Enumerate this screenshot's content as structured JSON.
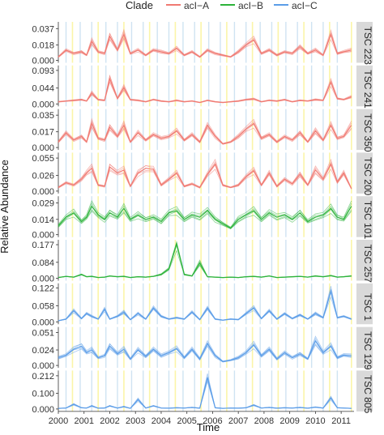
{
  "chart_data": {
    "type": "line",
    "xlabel": "Time",
    "ylabel": "Relative Abundance",
    "legend": {
      "title": "Clade",
      "placement": "top",
      "entries": [
        {
          "name": "acI−A",
          "color": "#f07a72"
        },
        {
          "name": "acI−B",
          "color": "#2cb33a"
        },
        {
          "name": "acI−C",
          "color": "#5b9de8"
        }
      ]
    },
    "x_ticks": [
      "2000",
      "2001",
      "2002",
      "2003",
      "2004",
      "2005",
      "2006",
      "2007",
      "2008",
      "2009",
      "2010",
      "2011"
    ],
    "xlim": [
      2000.0,
      2011.5
    ],
    "vertical_lines": {
      "yellow_color": "#fbf5a8",
      "blue_color": "#cfe3f2",
      "yellow": [
        2000.55,
        2001.55,
        2002.55,
        2003.55,
        2004.55,
        2005.55,
        2006.55,
        2007.55,
        2008.55,
        2009.55,
        2010.55,
        2011.4
      ],
      "blue": [
        2000.3,
        2000.85,
        2001.3,
        2001.85,
        2002.3,
        2002.85,
        2003.3,
        2003.85,
        2004.3,
        2004.85,
        2005.3,
        2005.85,
        2006.3,
        2006.85,
        2007.3,
        2007.85,
        2008.3,
        2008.85,
        2009.3,
        2009.85,
        2010.3,
        2010.85
      ]
    },
    "panels": [
      {
        "strip": "TSC 223",
        "clade": "acI−A",
        "ticks": [
          "0.000",
          "0.018",
          "0.037"
        ],
        "ymax": 0.042,
        "x": [
          2000.0,
          2000.3,
          2000.6,
          2000.9,
          2001.1,
          2001.3,
          2001.55,
          2001.8,
          2002.0,
          2002.3,
          2002.55,
          2002.8,
          2003.1,
          2003.4,
          2003.7,
          2004.0,
          2004.3,
          2004.6,
          2004.9,
          2005.2,
          2005.5,
          2005.8,
          2006.1,
          2006.4,
          2006.7,
          2007.0,
          2007.3,
          2007.6,
          2007.9,
          2008.2,
          2008.5,
          2008.8,
          2009.1,
          2009.4,
          2009.7,
          2010.0,
          2010.3,
          2010.6,
          2010.85,
          2011.1,
          2011.4
        ],
        "y": [
          0.004,
          0.012,
          0.008,
          0.01,
          0.006,
          0.022,
          0.01,
          0.008,
          0.028,
          0.012,
          0.03,
          0.008,
          0.012,
          0.006,
          0.012,
          0.01,
          0.008,
          0.014,
          0.006,
          0.01,
          0.004,
          0.012,
          0.008,
          0.006,
          0.004,
          0.01,
          0.018,
          0.024,
          0.008,
          0.012,
          0.006,
          0.01,
          0.008,
          0.016,
          0.008,
          0.012,
          0.006,
          0.03,
          0.008,
          0.01,
          0.012
        ]
      },
      {
        "strip": "TSC 241",
        "clade": "acI−A",
        "ticks": [
          "0.000",
          "0.044",
          "0.093"
        ],
        "ymax": 0.1,
        "x": [
          2000.0,
          2000.3,
          2000.6,
          2000.9,
          2001.1,
          2001.3,
          2001.55,
          2001.8,
          2002.0,
          2002.3,
          2002.55,
          2002.8,
          2003.1,
          2003.4,
          2003.7,
          2004.0,
          2004.3,
          2004.6,
          2004.9,
          2005.2,
          2005.5,
          2005.8,
          2006.1,
          2006.4,
          2006.7,
          2007.0,
          2007.3,
          2007.6,
          2007.9,
          2008.2,
          2008.5,
          2008.8,
          2009.1,
          2009.4,
          2009.7,
          2010.0,
          2010.3,
          2010.6,
          2010.85,
          2011.1,
          2011.4
        ],
        "y": [
          0.006,
          0.008,
          0.01,
          0.012,
          0.008,
          0.03,
          0.012,
          0.01,
          0.07,
          0.015,
          0.045,
          0.012,
          0.01,
          0.006,
          0.012,
          0.008,
          0.006,
          0.01,
          0.006,
          0.008,
          0.004,
          0.01,
          0.006,
          0.004,
          0.006,
          0.008,
          0.012,
          0.014,
          0.006,
          0.01,
          0.008,
          0.012,
          0.006,
          0.01,
          0.008,
          0.012,
          0.01,
          0.06,
          0.015,
          0.012,
          0.02
        ]
      },
      {
        "strip": "TSC 350",
        "clade": "acI−A",
        "ticks": [
          "0.000",
          "0.017",
          "0.035"
        ],
        "ymax": 0.039,
        "x": [
          2000.0,
          2000.3,
          2000.6,
          2000.9,
          2001.1,
          2001.3,
          2001.55,
          2001.8,
          2002.0,
          2002.3,
          2002.55,
          2002.8,
          2003.1,
          2003.4,
          2003.7,
          2004.0,
          2004.3,
          2004.6,
          2004.9,
          2005.2,
          2005.5,
          2005.8,
          2006.1,
          2006.4,
          2006.7,
          2007.0,
          2007.3,
          2007.6,
          2007.9,
          2008.2,
          2008.5,
          2008.8,
          2009.1,
          2009.4,
          2009.7,
          2010.0,
          2010.3,
          2010.6,
          2010.85,
          2011.1,
          2011.4
        ],
        "y": [
          0.006,
          0.016,
          0.008,
          0.012,
          0.006,
          0.026,
          0.01,
          0.008,
          0.022,
          0.012,
          0.024,
          0.006,
          0.016,
          0.008,
          0.014,
          0.01,
          0.012,
          0.018,
          0.008,
          0.014,
          0.006,
          0.024,
          0.012,
          0.004,
          0.006,
          0.012,
          0.02,
          0.026,
          0.01,
          0.014,
          0.006,
          0.012,
          0.008,
          0.016,
          0.006,
          0.018,
          0.008,
          0.024,
          0.01,
          0.012,
          0.024
        ]
      },
      {
        "strip": "TSC 200",
        "clade": "acI−A",
        "ticks": [
          "0.000",
          "0.026",
          "0.055"
        ],
        "ymax": 0.06,
        "x": [
          2000.0,
          2000.3,
          2000.6,
          2000.9,
          2001.1,
          2001.3,
          2001.55,
          2001.8,
          2002.0,
          2002.3,
          2002.55,
          2002.8,
          2003.1,
          2003.4,
          2003.7,
          2004.0,
          2004.3,
          2004.6,
          2004.9,
          2005.2,
          2005.5,
          2005.8,
          2006.1,
          2006.4,
          2006.7,
          2007.0,
          2007.3,
          2007.6,
          2007.9,
          2008.2,
          2008.5,
          2008.8,
          2009.1,
          2009.4,
          2009.7,
          2010.0,
          2010.3,
          2010.6,
          2010.85,
          2011.1,
          2011.4
        ],
        "y": [
          0.006,
          0.014,
          0.01,
          0.02,
          0.03,
          0.038,
          0.01,
          0.008,
          0.04,
          0.03,
          0.035,
          0.008,
          0.03,
          0.038,
          0.036,
          0.01,
          0.02,
          0.03,
          0.008,
          0.012,
          0.006,
          0.028,
          0.045,
          0.01,
          0.006,
          0.01,
          0.024,
          0.034,
          0.01,
          0.03,
          0.008,
          0.02,
          0.012,
          0.028,
          0.01,
          0.035,
          0.02,
          0.045,
          0.015,
          0.03,
          0.004
        ]
      },
      {
        "strip": "TSC 101",
        "clade": "acI−B",
        "ticks": [
          "0.000",
          "0.014",
          "0.029"
        ],
        "ymax": 0.033,
        "x": [
          2000.0,
          2000.3,
          2000.6,
          2000.9,
          2001.1,
          2001.3,
          2001.55,
          2001.8,
          2002.0,
          2002.3,
          2002.55,
          2002.8,
          2003.1,
          2003.4,
          2003.7,
          2004.0,
          2004.3,
          2004.6,
          2004.9,
          2005.2,
          2005.5,
          2005.8,
          2006.1,
          2006.4,
          2006.7,
          2007.0,
          2007.3,
          2007.6,
          2007.9,
          2008.2,
          2008.5,
          2008.8,
          2009.1,
          2009.4,
          2009.7,
          2010.0,
          2010.3,
          2010.6,
          2010.85,
          2011.1,
          2011.4
        ],
        "y": [
          0.008,
          0.016,
          0.02,
          0.012,
          0.016,
          0.026,
          0.018,
          0.014,
          0.02,
          0.016,
          0.024,
          0.014,
          0.018,
          0.014,
          0.016,
          0.012,
          0.02,
          0.022,
          0.014,
          0.018,
          0.016,
          0.022,
          0.014,
          0.01,
          0.006,
          0.014,
          0.018,
          0.022,
          0.014,
          0.02,
          0.016,
          0.018,
          0.014,
          0.02,
          0.012,
          0.016,
          0.018,
          0.024,
          0.016,
          0.014,
          0.026
        ]
      },
      {
        "strip": "TSC 257",
        "clade": "acI−B",
        "ticks": [
          "0.000",
          "0.084",
          "0.177"
        ],
        "ymax": 0.19,
        "x": [
          2000.0,
          2000.3,
          2000.6,
          2000.9,
          2001.1,
          2001.3,
          2001.55,
          2001.8,
          2002.0,
          2002.3,
          2002.55,
          2002.8,
          2003.1,
          2003.4,
          2003.7,
          2004.0,
          2004.3,
          2004.6,
          2004.9,
          2005.2,
          2005.5,
          2005.8,
          2006.1,
          2006.4,
          2006.7,
          2007.0,
          2007.3,
          2007.6,
          2007.9,
          2008.2,
          2008.5,
          2008.8,
          2009.1,
          2009.4,
          2009.7,
          2010.0,
          2010.3,
          2010.6,
          2010.85,
          2011.1,
          2011.4
        ],
        "y": [
          0.004,
          0.01,
          0.006,
          0.02,
          0.008,
          0.01,
          0.004,
          0.006,
          0.012,
          0.008,
          0.01,
          0.004,
          0.008,
          0.006,
          0.01,
          0.02,
          0.05,
          0.18,
          0.02,
          0.012,
          0.08,
          0.008,
          0.006,
          0.004,
          0.006,
          0.004,
          0.008,
          0.01,
          0.006,
          0.012,
          0.004,
          0.006,
          0.008,
          0.01,
          0.006,
          0.012,
          0.008,
          0.014,
          0.006,
          0.008,
          0.012
        ]
      },
      {
        "strip": "TSC 1",
        "clade": "acI−C",
        "ticks": [
          "0.000",
          "0.058",
          "0.122"
        ],
        "ymax": 0.13,
        "x": [
          2000.0,
          2000.3,
          2000.6,
          2000.9,
          2001.1,
          2001.3,
          2001.55,
          2001.8,
          2002.0,
          2002.3,
          2002.55,
          2002.8,
          2003.1,
          2003.4,
          2003.7,
          2004.0,
          2004.3,
          2004.6,
          2004.9,
          2005.2,
          2005.5,
          2005.8,
          2006.1,
          2006.4,
          2006.7,
          2007.0,
          2007.3,
          2007.6,
          2007.9,
          2008.2,
          2008.5,
          2008.8,
          2009.1,
          2009.4,
          2009.7,
          2010.0,
          2010.3,
          2010.6,
          2010.85,
          2011.1,
          2011.4
        ],
        "y": [
          0.004,
          0.01,
          0.04,
          0.012,
          0.03,
          0.02,
          0.01,
          0.045,
          0.01,
          0.02,
          0.035,
          0.008,
          0.03,
          0.01,
          0.05,
          0.02,
          0.01,
          0.015,
          0.01,
          0.035,
          0.008,
          0.05,
          0.01,
          0.006,
          0.01,
          0.008,
          0.03,
          0.05,
          0.012,
          0.04,
          0.01,
          0.03,
          0.012,
          0.025,
          0.01,
          0.03,
          0.015,
          0.11,
          0.015,
          0.02,
          0.01
        ]
      },
      {
        "strip": "TSC 129",
        "clade": "acI−C",
        "ticks": [
          "0.000",
          "0.024",
          "0.051"
        ],
        "ymax": 0.056,
        "x": [
          2000.0,
          2000.3,
          2000.6,
          2000.9,
          2001.1,
          2001.3,
          2001.55,
          2001.8,
          2002.0,
          2002.3,
          2002.55,
          2002.8,
          2003.1,
          2003.4,
          2003.7,
          2004.0,
          2004.3,
          2004.6,
          2004.9,
          2005.2,
          2005.5,
          2005.8,
          2006.1,
          2006.4,
          2006.7,
          2007.0,
          2007.3,
          2007.6,
          2007.9,
          2008.2,
          2008.5,
          2008.8,
          2009.1,
          2009.4,
          2009.7,
          2010.0,
          2010.3,
          2010.6,
          2010.85,
          2011.1,
          2011.4
        ],
        "y": [
          0.012,
          0.016,
          0.025,
          0.03,
          0.02,
          0.024,
          0.012,
          0.015,
          0.03,
          0.018,
          0.025,
          0.01,
          0.024,
          0.014,
          0.025,
          0.015,
          0.02,
          0.026,
          0.012,
          0.025,
          0.01,
          0.034,
          0.015,
          0.006,
          0.008,
          0.012,
          0.02,
          0.032,
          0.015,
          0.025,
          0.01,
          0.02,
          0.012,
          0.018,
          0.01,
          0.038,
          0.02,
          0.03,
          0.012,
          0.016,
          0.015
        ]
      },
      {
        "strip": "TSC 805",
        "clade": "acI−C",
        "ticks": [
          "0.000",
          "0.100",
          "0.212"
        ],
        "ymax": 0.23,
        "x": [
          2000.0,
          2000.3,
          2000.6,
          2000.9,
          2001.1,
          2001.3,
          2001.55,
          2001.8,
          2002.0,
          2002.3,
          2002.55,
          2002.8,
          2003.1,
          2003.4,
          2003.7,
          2004.0,
          2004.3,
          2004.6,
          2004.9,
          2005.2,
          2005.5,
          2005.8,
          2006.1,
          2006.4,
          2006.7,
          2007.0,
          2007.3,
          2007.6,
          2007.9,
          2008.2,
          2008.5,
          2008.8,
          2009.1,
          2009.4,
          2009.7,
          2010.0,
          2010.3,
          2010.6,
          2010.85,
          2011.1,
          2011.4
        ],
        "y": [
          0.004,
          0.006,
          0.03,
          0.008,
          0.006,
          0.02,
          0.005,
          0.006,
          0.02,
          0.006,
          0.015,
          0.004,
          0.06,
          0.006,
          0.02,
          0.006,
          0.005,
          0.008,
          0.006,
          0.01,
          0.005,
          0.2,
          0.008,
          0.004,
          0.006,
          0.005,
          0.008,
          0.025,
          0.006,
          0.01,
          0.005,
          0.008,
          0.006,
          0.01,
          0.005,
          0.012,
          0.006,
          0.07,
          0.008,
          0.006,
          0.004
        ]
      }
    ]
  }
}
